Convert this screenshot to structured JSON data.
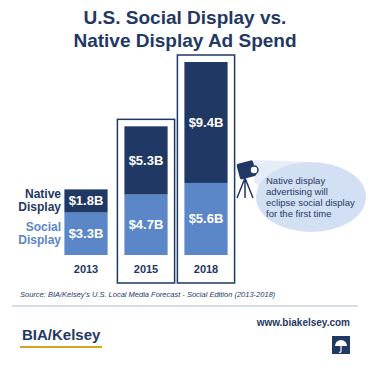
{
  "chart_data": {
    "type": "bar",
    "title": "U.S. Social Display vs. Native Display Ad Spend",
    "categories": [
      "2013",
      "2015",
      "2018"
    ],
    "stacked": true,
    "data_labels": true,
    "tick_labels": "x",
    "ylim": [
      0,
      15
    ],
    "series": [
      {
        "name": "Social Display",
        "color": "#5b86c8",
        "values": [
          3.3,
          4.7,
          5.6
        ],
        "value_labels": [
          "$3.3B",
          "$4.7B",
          "$5.6B"
        ]
      },
      {
        "name": "Native Display",
        "color": "#1f3864",
        "values": [
          1.8,
          5.3,
          9.4
        ],
        "value_labels": [
          "$1.8B",
          "$5.3B",
          "$9.4B"
        ]
      }
    ],
    "annotation": "Native display advertising will eclipse social display for the first time",
    "source": "Source: BIA/Kelsey's U.S. Local Media Forecast - Social Edition (2013-2018)",
    "logo": "BIA/Kelsey",
    "website": "www.biakelsey.com"
  }
}
